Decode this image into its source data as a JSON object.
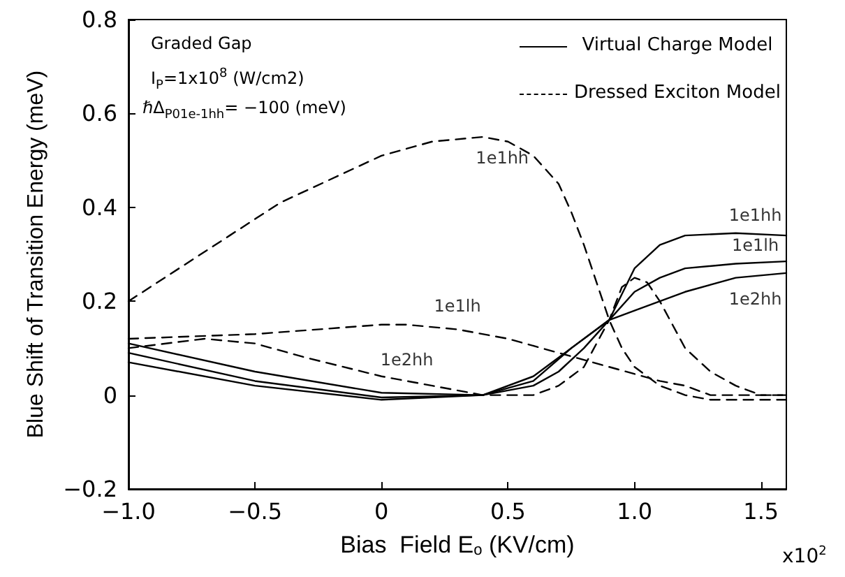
{
  "chart_data": {
    "type": "line",
    "xlabel": "Bias  Field E$_{o}$ (KV/cm)",
    "ylabel": "Blue Shift of Transition Energy (meV)",
    "xlim": [
      -1.0,
      1.6
    ],
    "xticks": [
      {
        "value": -1.0,
        "label": "−1.0"
      },
      {
        "value": -0.5,
        "label": "−0.5"
      },
      0,
      {
        "value": 0.5,
        "label": "0.5"
      },
      {
        "value": 1.0,
        "label": "1.0"
      },
      {
        "value": 1.5,
        "label": "1.5"
      }
    ],
    "ylim": [
      -0.2,
      0.8
    ],
    "yticks": [
      {
        "value": -0.2,
        "label": "−0.2"
      },
      0,
      0.2,
      0.4,
      0.6,
      0.8
    ],
    "grid": false,
    "marker": "none",
    "series": [
      {
        "color": "#000000",
        "line_style": "solid",
        "x": [
          -1,
          -0.5,
          0,
          0.4,
          0.6,
          0.7,
          0.8,
          0.9,
          1.0,
          1.1,
          1.2,
          1.4,
          1.6
        ],
        "values": [
          0.07,
          0.02,
          -0.01,
          0.0,
          0.02,
          0.05,
          0.1,
          0.16,
          0.27,
          0.32,
          0.34,
          0.345,
          0.34
        ]
      },
      {
        "color": "#000000",
        "line_style": "solid",
        "x": [
          -1,
          -0.5,
          0,
          0.4,
          0.6,
          0.75,
          0.9,
          1.0,
          1.1,
          1.2,
          1.4,
          1.6
        ],
        "values": [
          0.09,
          0.03,
          -0.005,
          0.0,
          0.03,
          0.1,
          0.16,
          0.22,
          0.25,
          0.27,
          0.28,
          0.285
        ]
      },
      {
        "color": "#000000",
        "line_style": "solid",
        "x": [
          -1,
          -0.5,
          0,
          0.4,
          0.6,
          0.75,
          0.9,
          1.0,
          1.2,
          1.4,
          1.6
        ],
        "values": [
          0.11,
          0.05,
          0.005,
          0.0,
          0.04,
          0.1,
          0.16,
          0.18,
          0.22,
          0.25,
          0.26
        ]
      },
      {
        "color": "#000000",
        "line_style": "dashed",
        "x": [
          -1,
          -0.8,
          -0.6,
          -0.4,
          -0.2,
          0,
          0.2,
          0.4,
          0.5,
          0.6,
          0.7,
          0.75,
          0.8,
          0.85,
          0.9,
          0.95,
          1.0,
          1.1,
          1.2,
          1.3,
          1.6
        ],
        "values": [
          0.2,
          0.27,
          0.34,
          0.41,
          0.46,
          0.51,
          0.54,
          0.55,
          0.54,
          0.51,
          0.45,
          0.39,
          0.32,
          0.24,
          0.16,
          0.1,
          0.06,
          0.02,
          0.0,
          -0.01,
          -0.01
        ]
      },
      {
        "color": "#000000",
        "line_style": "dashed",
        "x": [
          -1,
          -0.5,
          0,
          0.1,
          0.3,
          0.5,
          0.7,
          0.9,
          1.1,
          1.2,
          1.3,
          1.5,
          1.6
        ],
        "values": [
          0.12,
          0.13,
          0.15,
          0.15,
          0.14,
          0.12,
          0.09,
          0.06,
          0.03,
          0.02,
          0.0,
          0.0,
          0.0
        ]
      },
      {
        "color": "#000000",
        "line_style": "dashed",
        "x": [
          -1,
          -0.7,
          -0.5,
          -0.3,
          0,
          0.1,
          0.3,
          0.4,
          0.6,
          0.7,
          0.8,
          0.9,
          0.95,
          1.0,
          1.05,
          1.1,
          1.2,
          1.3,
          1.4,
          1.5,
          1.6
        ],
        "values": [
          0.1,
          0.12,
          0.11,
          0.08,
          0.04,
          0.03,
          0.01,
          0.0,
          0.0,
          0.02,
          0.06,
          0.16,
          0.23,
          0.25,
          0.24,
          0.2,
          0.1,
          0.05,
          0.02,
          0.0,
          0.0
        ]
      }
    ],
    "annotations": [
      "Graded Gap",
      "I$_{P}$=1x10$^{8}$ (W/cm2)",
      "ℏΔ$_{P01e-1hh}$= −100 (meV)",
      "Virtual Charge Model",
      "Dressed Exciton Model",
      "x10$^{2}$",
      {
        "text": "1e1hh",
        "x": 0.4,
        "y": 0.55
      },
      {
        "text": "1e1lh",
        "x": 0.3,
        "y": 0.14
      },
      {
        "text": "1e2hh",
        "x": 0.1,
        "y": 0.03
      },
      {
        "text": "1e1hh",
        "x": 1.4,
        "y": 0.345
      },
      {
        "text": "1e1lh",
        "x": 1.4,
        "y": 0.28
      },
      {
        "text": "1e2hh",
        "x": 1.4,
        "y": 0.25
      }
    ]
  }
}
